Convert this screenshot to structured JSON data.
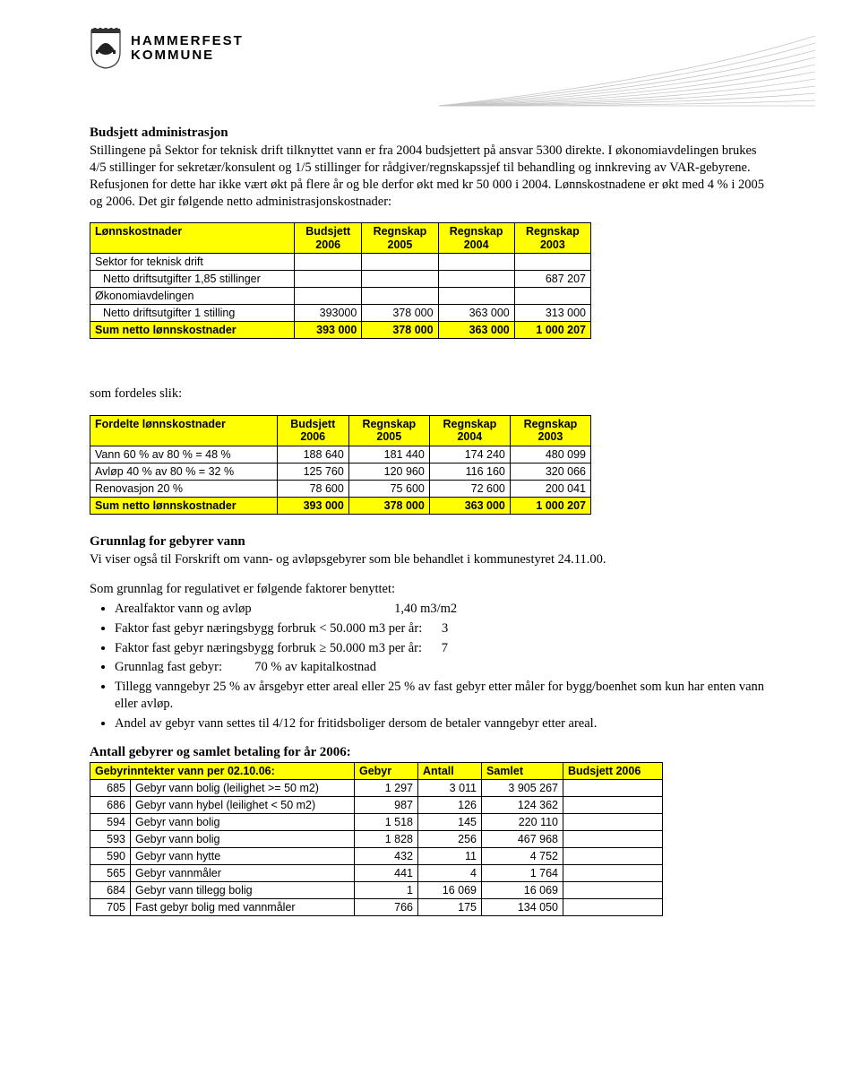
{
  "letterhead": {
    "org_line1": "HAMMERFEST",
    "org_line2": "KOMMUNE"
  },
  "sec1": {
    "title": "Budsjett administrasjon",
    "para1": "Stillingene på Sektor for teknisk drift tilknyttet vann er fra 2004 budsjettert på ansvar 5300 direkte. I økonomiavdelingen brukes 4/5 stillinger for sekretær/konsulent og 1/5 stillinger for rådgiver/regnskapssjef til behandling og innkreving av VAR-gebyrene. Refusjonen for dette har ikke vært økt på flere år og ble derfor økt med kr 50 000 i 2004. Lønnskostnadene er økt med 4 % i 2005 og 2006. Det gir følgende netto administrasjonskostnader:"
  },
  "table1": {
    "highlight_color": "#ffff00",
    "border_color": "#000000",
    "fontsize": 12.5,
    "col_labels": [
      "Lønnskostnader",
      "Budsjett 2006",
      "Regnskap 2005",
      "Regnskap 2004",
      "Regnskap 2003"
    ],
    "rows": [
      {
        "label": "Sektor for teknisk drift",
        "indent": false,
        "vals": [
          "",
          "",
          "",
          ""
        ]
      },
      {
        "label": "Netto driftsutgifter 1,85 stillinger",
        "indent": true,
        "vals": [
          "",
          "",
          "",
          "687 207"
        ]
      },
      {
        "label": "Økonomiavdelingen",
        "indent": false,
        "vals": [
          "",
          "",
          "",
          ""
        ]
      },
      {
        "label": "Netto driftsutgifter 1 stilling",
        "indent": true,
        "vals": [
          "393000",
          "378 000",
          "363 000",
          "313 000"
        ]
      }
    ],
    "sum": {
      "label": "Sum netto lønnskostnader",
      "vals": [
        "393 000",
        "378 000",
        "363 000",
        "1 000 207"
      ]
    }
  },
  "sec2": {
    "intro": "som fordeles slik:"
  },
  "table2": {
    "highlight_color": "#ffff00",
    "col_labels": [
      "Fordelte lønnskostnader",
      "Budsjett 2006",
      "Regnskap 2005",
      "Regnskap 2004",
      "Regnskap 2003"
    ],
    "rows": [
      {
        "label": "Vann 60 % av 80 % = 48 %",
        "vals": [
          "188 640",
          "181 440",
          "174 240",
          "480 099"
        ]
      },
      {
        "label": "Avløp 40 % av 80 % = 32 %",
        "vals": [
          "125 760",
          "120 960",
          "116 160",
          "320 066"
        ]
      },
      {
        "label": "Renovasjon 20 %",
        "vals": [
          "78 600",
          "75 600",
          "72 600",
          "200 041"
        ]
      }
    ],
    "sum": {
      "label": "Sum netto lønnskostnader",
      "vals": [
        "393 000",
        "378 000",
        "363 000",
        "1 000 207"
      ]
    }
  },
  "sec3": {
    "title": "Grunnlag for gebyrer vann",
    "para1": "Vi viser også til Forskrift om vann- og avløpsgebyrer som ble behandlet i kommunestyret 24.11.00.",
    "para2": "Som grunnlag for regulativet er følgende faktorer benyttet:",
    "bullets": [
      "Arealfaktor vann og avløp                                            1,40 m3/m2",
      "Faktor fast gebyr næringsbygg forbruk < 50.000 m3 per år:      3",
      "Faktor fast gebyr næringsbygg forbruk ≥ 50.000 m3 per år:      7",
      "Grunnlag fast gebyr:          70 % av kapitalkostnad",
      "Tillegg vanngebyr 25 % av årsgebyr etter areal eller 25 % av fast gebyr etter måler for bygg/boenhet som kun har enten vann eller avløp.",
      "Andel av gebyr vann settes til 4/12 for fritidsboliger dersom de betaler vanngebyr etter areal."
    ]
  },
  "sec4": {
    "title": "Antall gebyrer og samlet betaling for år 2006:"
  },
  "table3": {
    "highlight_color": "#ffff00",
    "header": [
      "Gebyrinntekter vann per 02.10.06:",
      "Gebyr",
      "Antall",
      "Samlet",
      "Budsjett 2006"
    ],
    "rows": [
      {
        "code": "685",
        "label": "Gebyr vann bolig (leilighet >= 50 m2)",
        "gebyr": "1 297",
        "antall": "3 011",
        "samlet": "3 905 267",
        "budsjett": ""
      },
      {
        "code": "686",
        "label": "Gebyr vann hybel (leilighet < 50 m2)",
        "gebyr": "987",
        "antall": "126",
        "samlet": "124 362",
        "budsjett": ""
      },
      {
        "code": "594",
        "label": "Gebyr vann bolig",
        "gebyr": "1 518",
        "antall": "145",
        "samlet": "220 110",
        "budsjett": ""
      },
      {
        "code": "593",
        "label": "Gebyr vann bolig",
        "gebyr": "1 828",
        "antall": "256",
        "samlet": "467 968",
        "budsjett": ""
      },
      {
        "code": "590",
        "label": "Gebyr vann hytte",
        "gebyr": "432",
        "antall": "11",
        "samlet": "4 752",
        "budsjett": ""
      },
      {
        "code": "565",
        "label": "Gebyr vannmåler",
        "gebyr": "441",
        "antall": "4",
        "samlet": "1 764",
        "budsjett": ""
      },
      {
        "code": "684",
        "label": "Gebyr vann tillegg bolig",
        "gebyr": "1",
        "antall": "16 069",
        "samlet": "16 069",
        "budsjett": ""
      },
      {
        "code": "705",
        "label": "Fast gebyr bolig med vannmåler",
        "gebyr": "766",
        "antall": "175",
        "samlet": "134 050",
        "budsjett": ""
      }
    ]
  }
}
